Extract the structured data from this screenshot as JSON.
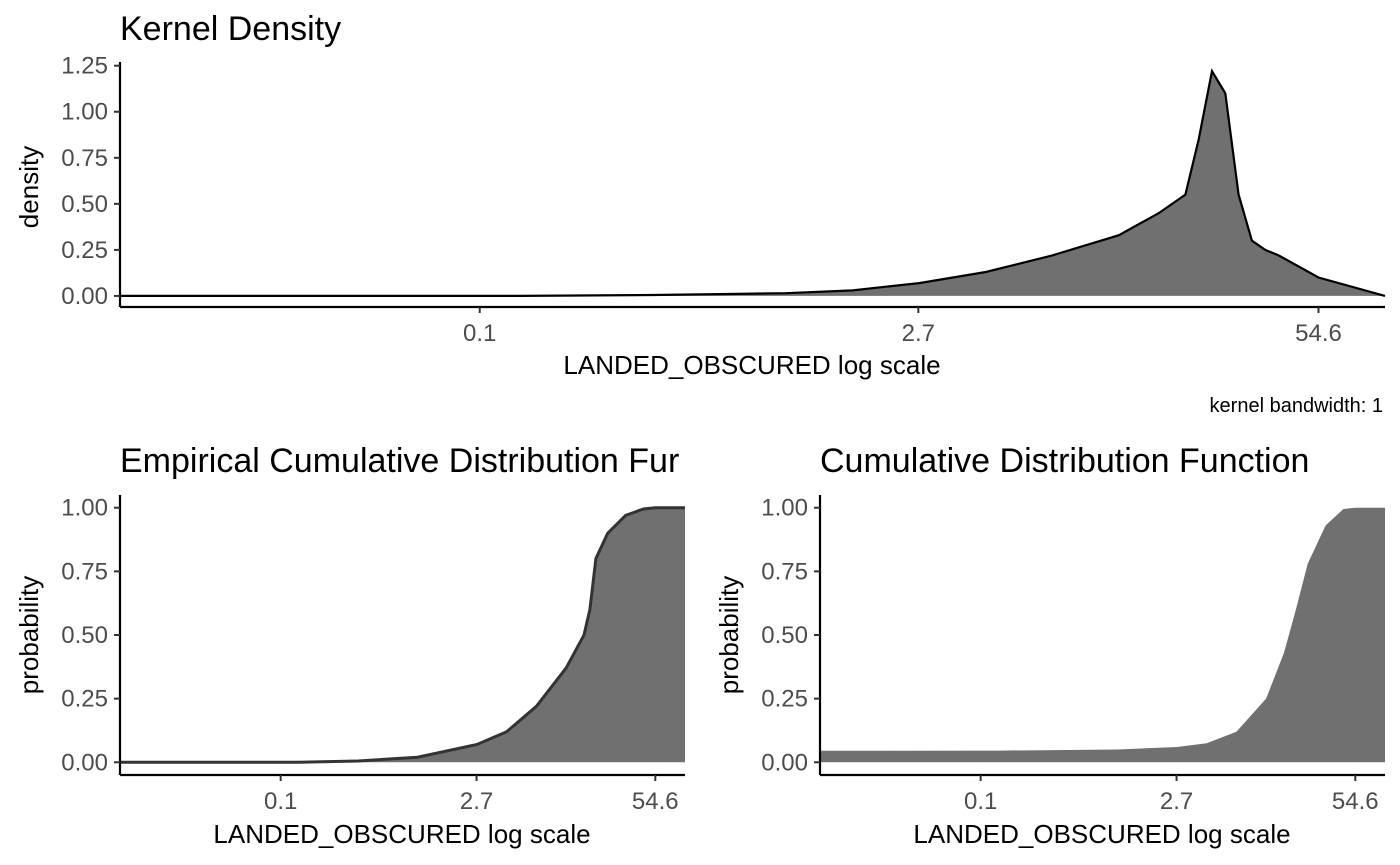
{
  "chart_data": [
    {
      "type": "area",
      "title": "Kernel Density",
      "xlabel": "LANDED_OBSCURED  log scale",
      "ylabel": "density",
      "x_scale": "log",
      "x_ticks": [
        0.1,
        2.7,
        54.6
      ],
      "x_tick_labels": [
        "0.1",
        "2.7",
        "54.6"
      ],
      "xlim": [
        0.0067,
        90
      ],
      "y_ticks": [
        0,
        0.25,
        0.5,
        0.75,
        1.0,
        1.25
      ],
      "y_tick_labels": [
        "0.00",
        "0.25",
        "0.50",
        "0.75",
        "1.00",
        "1.25"
      ],
      "ylim": [
        -0.06,
        1.27
      ],
      "caption": "kernel bandwidth: 1",
      "fill_color": "#707070",
      "line_color": "#000000",
      "grid": false,
      "x": [
        0.0067,
        0.0183,
        0.0498,
        0.1353,
        0.3679,
        0.6065,
        1.0,
        1.6487,
        2.117,
        2.7183,
        4.4817,
        7.3891,
        12.182,
        16.445,
        20.086,
        22.198,
        24.533,
        27.113,
        29.964,
        33.115,
        36.598,
        40.447,
        54.598,
        90.017
      ],
      "y": [
        0.0,
        0.0,
        0.0,
        0.0,
        0.005,
        0.01,
        0.015,
        0.03,
        0.05,
        0.07,
        0.13,
        0.22,
        0.33,
        0.45,
        0.55,
        0.85,
        1.22,
        1.1,
        0.55,
        0.3,
        0.25,
        0.22,
        0.1,
        0.0
      ]
    },
    {
      "type": "area",
      "title": "Empirical Cumulative Distribution Fur",
      "xlabel": "LANDED_OBSCURED  log scale",
      "ylabel": "probability",
      "x_scale": "log",
      "x_ticks": [
        0.1,
        2.7,
        54.6
      ],
      "x_tick_labels": [
        "0.1",
        "2.7",
        "54.6"
      ],
      "xlim": [
        0.0067,
        90
      ],
      "y_ticks": [
        0,
        0.25,
        0.5,
        0.75,
        1.0
      ],
      "y_tick_labels": [
        "0.00",
        "0.25",
        "0.50",
        "0.75",
        "1.00"
      ],
      "ylim": [
        -0.05,
        1.05
      ],
      "fill_color": "#707070",
      "line_color": "#333333",
      "grid": false,
      "x": [
        0.0067,
        0.1353,
        0.3679,
        1.0,
        2.7183,
        4.4817,
        7.3891,
        12.182,
        16.445,
        18.174,
        20.086,
        24.533,
        33.115,
        44.701,
        54.598,
        90.017
      ],
      "y": [
        0.0,
        0.0,
        0.005,
        0.02,
        0.07,
        0.12,
        0.22,
        0.37,
        0.5,
        0.6,
        0.8,
        0.9,
        0.97,
        0.995,
        1.0,
        1.0
      ]
    },
    {
      "type": "area",
      "title": "Cumulative Distribution Function",
      "xlabel": "LANDED_OBSCURED  log scale",
      "ylabel": "probability",
      "x_scale": "log",
      "x_ticks": [
        0.1,
        2.7,
        54.6
      ],
      "x_tick_labels": [
        "0.1",
        "2.7",
        "54.6"
      ],
      "xlim": [
        0.0067,
        90
      ],
      "y_ticks": [
        0,
        0.25,
        0.5,
        0.75,
        1.0
      ],
      "y_tick_labels": [
        "0.00",
        "0.25",
        "0.50",
        "0.75",
        "1.00"
      ],
      "ylim": [
        -0.05,
        1.05
      ],
      "fill_color": "#707070",
      "grid": false,
      "x": [
        0.0067,
        0.1353,
        1.0,
        2.7183,
        4.4817,
        7.3891,
        12.182,
        16.445,
        20.086,
        24.533,
        33.115,
        44.701,
        54.598,
        90.017
      ],
      "y": [
        0.045,
        0.046,
        0.05,
        0.06,
        0.075,
        0.12,
        0.25,
        0.43,
        0.6,
        0.78,
        0.93,
        0.995,
        1.0,
        1.0
      ]
    }
  ]
}
